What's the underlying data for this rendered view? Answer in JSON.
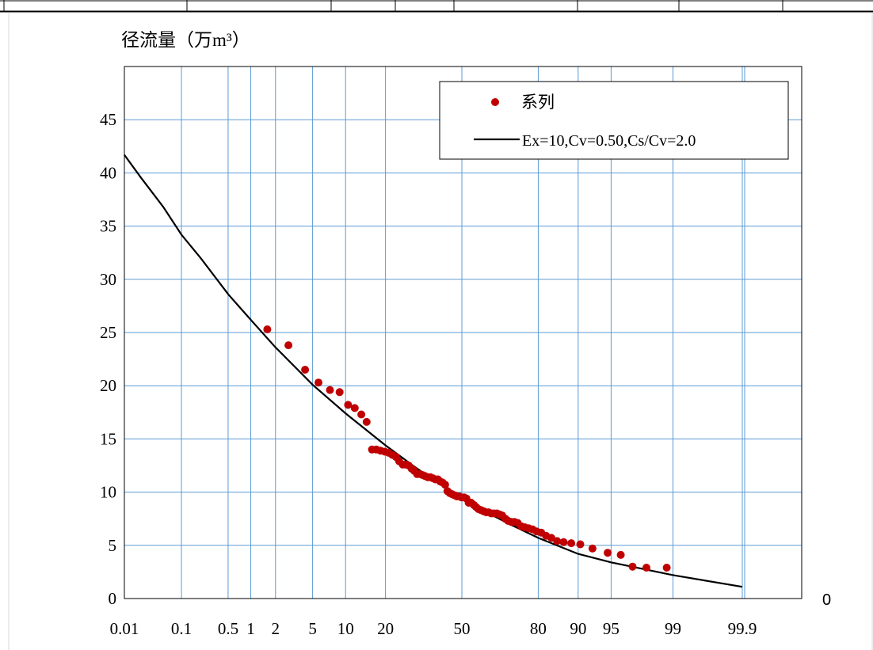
{
  "chart_data": {
    "type": "scatter",
    "title": "",
    "ylabel": "径流量（万m³）",
    "xlabel": "",
    "x_scale": "normal-probability (%)",
    "ylim": [
      0,
      50
    ],
    "xlim": [
      0.01,
      99.9
    ],
    "grid": true,
    "legend_position": "top-right",
    "x_ticks": [
      {
        "value": 0.01,
        "label": "0.01"
      },
      {
        "value": 0.1,
        "label": "0.1"
      },
      {
        "value": 0.5,
        "label": "0.5"
      },
      {
        "value": 1,
        "label": "1"
      },
      {
        "value": 2,
        "label": "2"
      },
      {
        "value": 5,
        "label": "5"
      },
      {
        "value": 10,
        "label": "10"
      },
      {
        "value": 20,
        "label": "20"
      },
      {
        "value": 50,
        "label": "50"
      },
      {
        "value": 80,
        "label": "80"
      },
      {
        "value": 90,
        "label": "90"
      },
      {
        "value": 95,
        "label": "95"
      },
      {
        "value": 99,
        "label": "99"
      },
      {
        "value": 99.9,
        "label": "99.9"
      }
    ],
    "y_ticks": [
      0,
      5,
      10,
      15,
      20,
      25,
      30,
      35,
      40,
      45
    ],
    "extra_label": "0",
    "series": [
      {
        "name": "系列",
        "kind": "scatter",
        "color": "#c00000",
        "points": [
          [
            1.6,
            25.3
          ],
          [
            2.8,
            23.8
          ],
          [
            4.2,
            21.5
          ],
          [
            5.7,
            20.3
          ],
          [
            7.3,
            19.6
          ],
          [
            8.9,
            19.4
          ],
          [
            10.5,
            18.2
          ],
          [
            11.9,
            17.9
          ],
          [
            13.4,
            17.3
          ],
          [
            14.7,
            16.6
          ],
          [
            16.1,
            14.0
          ],
          [
            17.3,
            14.0
          ],
          [
            18.5,
            13.9
          ],
          [
            19.8,
            13.8
          ],
          [
            21.0,
            13.7
          ],
          [
            22.2,
            13.5
          ],
          [
            23.4,
            13.3
          ],
          [
            24.5,
            12.9
          ],
          [
            25.7,
            12.6
          ],
          [
            26.8,
            12.6
          ],
          [
            27.9,
            12.5
          ],
          [
            29.0,
            12.2
          ],
          [
            30.0,
            12.0
          ],
          [
            31.1,
            11.7
          ],
          [
            32.2,
            11.7
          ],
          [
            33.3,
            11.6
          ],
          [
            34.3,
            11.5
          ],
          [
            35.4,
            11.4
          ],
          [
            36.4,
            11.4
          ],
          [
            37.5,
            11.3
          ],
          [
            38.5,
            11.2
          ],
          [
            39.6,
            11.2
          ],
          [
            40.6,
            11.0
          ],
          [
            41.6,
            10.9
          ],
          [
            42.7,
            10.7
          ],
          [
            43.7,
            10.1
          ],
          [
            44.7,
            9.9
          ],
          [
            45.8,
            9.8
          ],
          [
            46.8,
            9.7
          ],
          [
            47.8,
            9.6
          ],
          [
            48.9,
            9.6
          ],
          [
            49.9,
            9.5
          ],
          [
            51.0,
            9.5
          ],
          [
            52.0,
            9.4
          ],
          [
            53.0,
            9.0
          ],
          [
            54.1,
            9.0
          ],
          [
            55.2,
            8.8
          ],
          [
            56.2,
            8.6
          ],
          [
            57.3,
            8.4
          ],
          [
            58.4,
            8.3
          ],
          [
            59.5,
            8.2
          ],
          [
            60.6,
            8.1
          ],
          [
            61.6,
            8.1
          ],
          [
            62.7,
            8.0
          ],
          [
            63.8,
            8.0
          ],
          [
            65.0,
            8.0
          ],
          [
            66.1,
            7.9
          ],
          [
            67.2,
            7.8
          ],
          [
            68.4,
            7.5
          ],
          [
            69.5,
            7.3
          ],
          [
            70.7,
            7.2
          ],
          [
            71.9,
            7.2
          ],
          [
            73.1,
            7.1
          ],
          [
            74.3,
            6.8
          ],
          [
            75.6,
            6.7
          ],
          [
            76.9,
            6.6
          ],
          [
            78.2,
            6.5
          ],
          [
            79.5,
            6.3
          ],
          [
            80.9,
            6.2
          ],
          [
            82.3,
            5.9
          ],
          [
            83.8,
            5.7
          ],
          [
            85.3,
            5.4
          ],
          [
            86.9,
            5.3
          ],
          [
            88.6,
            5.2
          ],
          [
            90.4,
            5.1
          ],
          [
            92.5,
            4.7
          ],
          [
            94.6,
            4.3
          ],
          [
            96.0,
            4.1
          ],
          [
            97.0,
            3.0
          ],
          [
            97.9,
            2.9
          ],
          [
            98.8,
            2.9
          ]
        ]
      },
      {
        "name": "Ex=10,Cv=0.50,Cs/Cv=2.0",
        "kind": "line",
        "color": "#000000",
        "points": [
          [
            0.01,
            41.7
          ],
          [
            0.02,
            39.6
          ],
          [
            0.05,
            36.8
          ],
          [
            0.1,
            34.2
          ],
          [
            0.2,
            32.0
          ],
          [
            0.5,
            28.6
          ],
          [
            1,
            26.2
          ],
          [
            2,
            23.6
          ],
          [
            5,
            20.1
          ],
          [
            10,
            17.4
          ],
          [
            20,
            14.4
          ],
          [
            30,
            12.4
          ],
          [
            40,
            10.8
          ],
          [
            50,
            9.5
          ],
          [
            60,
            8.2
          ],
          [
            70,
            7.0
          ],
          [
            80,
            5.7
          ],
          [
            90,
            4.2
          ],
          [
            95,
            3.4
          ],
          [
            99,
            2.2
          ],
          [
            99.9,
            1.1
          ]
        ]
      }
    ]
  }
}
